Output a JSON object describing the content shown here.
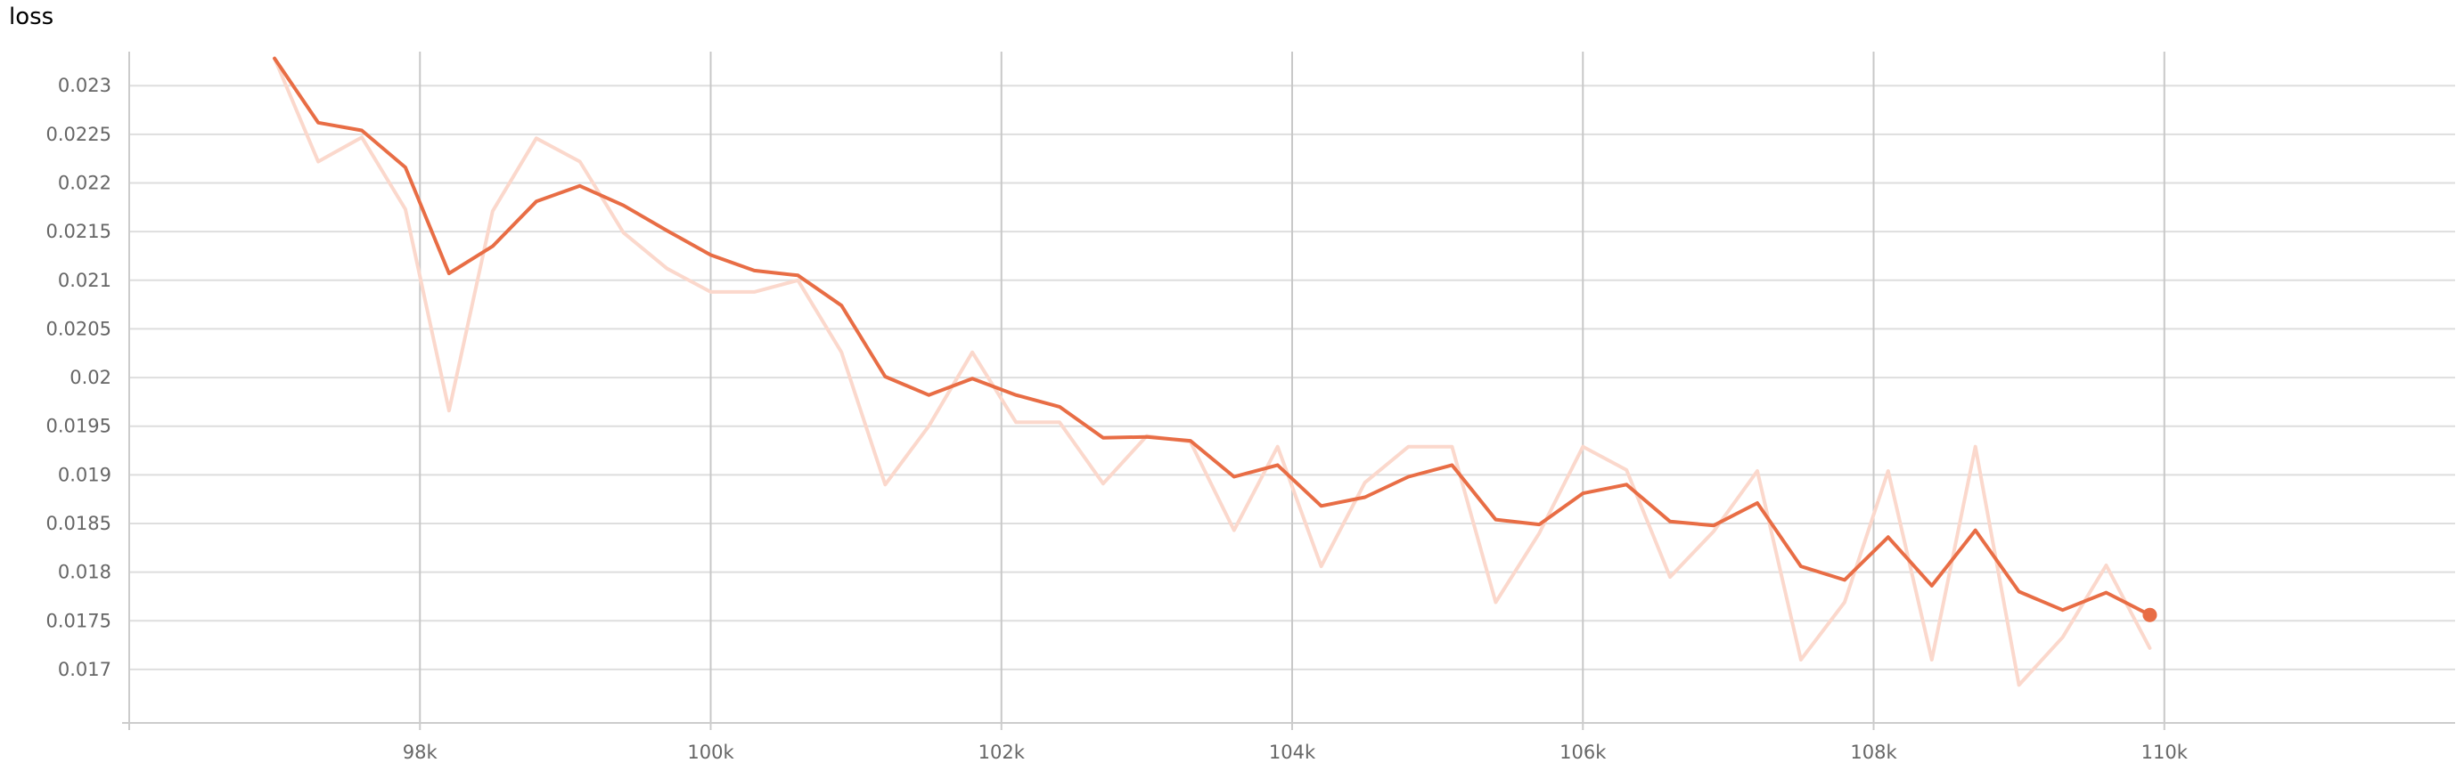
{
  "chart_data": {
    "type": "line",
    "title": "loss",
    "xlim": [
      96000,
      112000
    ],
    "ylim": [
      0.01645,
      0.02335
    ],
    "x_ticks": [
      {
        "value": 98000,
        "label": "98k"
      },
      {
        "value": 100000,
        "label": "100k"
      },
      {
        "value": 102000,
        "label": "102k"
      },
      {
        "value": 104000,
        "label": "104k"
      },
      {
        "value": 106000,
        "label": "106k"
      },
      {
        "value": 108000,
        "label": "108k"
      },
      {
        "value": 110000,
        "label": "110k"
      }
    ],
    "y_ticks": [
      {
        "value": 0.017,
        "label": "0.017"
      },
      {
        "value": 0.0175,
        "label": "0.0175"
      },
      {
        "value": 0.018,
        "label": "0.018"
      },
      {
        "value": 0.0185,
        "label": "0.0185"
      },
      {
        "value": 0.019,
        "label": "0.019"
      },
      {
        "value": 0.0195,
        "label": "0.0195"
      },
      {
        "value": 0.02,
        "label": "0.02"
      },
      {
        "value": 0.0205,
        "label": "0.0205"
      },
      {
        "value": 0.021,
        "label": "0.021"
      },
      {
        "value": 0.0215,
        "label": "0.0215"
      },
      {
        "value": 0.022,
        "label": "0.022"
      },
      {
        "value": 0.0225,
        "label": "0.0225"
      },
      {
        "value": 0.023,
        "label": "0.023"
      }
    ],
    "grid": true,
    "series": [
      {
        "colour": "#fbd8cc",
        "x": [
          97000,
          97300,
          97600,
          97900,
          98200,
          98500,
          98800,
          99100,
          99400,
          99700,
          100000,
          100300,
          100600,
          100900,
          101200,
          101500,
          101800,
          102100,
          102400,
          102700,
          103000,
          103300,
          103600,
          103900,
          104200,
          104500,
          104800,
          105100,
          105400,
          105700,
          106000,
          106300,
          106600,
          106900,
          107200,
          107500,
          107800,
          108100,
          108400,
          108700,
          109000,
          109300,
          109600,
          109900
        ],
        "y": [
          0.02328,
          0.02222,
          0.02247,
          0.02173,
          0.01966,
          0.02171,
          0.02246,
          0.02222,
          0.02149,
          0.02112,
          0.02088,
          0.02088,
          0.021,
          0.02026,
          0.0189,
          0.0195,
          0.02026,
          0.01954,
          0.01954,
          0.01891,
          0.0194,
          0.01934,
          0.01843,
          0.01929,
          0.01806,
          0.01892,
          0.01929,
          0.01929,
          0.01769,
          0.0184,
          0.01929,
          0.01905,
          0.01795,
          0.01842,
          0.01904,
          0.0171,
          0.01769,
          0.01904,
          0.0171,
          0.01929,
          0.01684,
          0.01733,
          0.01807,
          0.01722
        ]
      },
      {
        "colour": "#e86d45",
        "x": [
          97000,
          97300,
          97600,
          97900,
          98200,
          98500,
          98800,
          99100,
          99400,
          99700,
          100000,
          100300,
          100600,
          100900,
          101200,
          101500,
          101800,
          102100,
          102400,
          102700,
          103000,
          103300,
          103600,
          103900,
          104200,
          104500,
          104800,
          105100,
          105400,
          105700,
          106000,
          106300,
          106600,
          106900,
          107200,
          107500,
          107800,
          108100,
          108400,
          108700,
          109000,
          109300,
          109600,
          109900
        ],
        "y": [
          0.02328,
          0.02262,
          0.02254,
          0.02216,
          0.02107,
          0.02135,
          0.02181,
          0.02197,
          0.02177,
          0.02151,
          0.02126,
          0.0211,
          0.02105,
          0.02074,
          0.02001,
          0.01982,
          0.01999,
          0.01982,
          0.0197,
          0.01938,
          0.01939,
          0.01935,
          0.01898,
          0.0191,
          0.01868,
          0.01877,
          0.01898,
          0.0191,
          0.01854,
          0.01849,
          0.01881,
          0.0189,
          0.01852,
          0.01848,
          0.01871,
          0.01806,
          0.01792,
          0.01836,
          0.01786,
          0.01843,
          0.0178,
          0.01761,
          0.01779,
          0.01756
        ]
      }
    ]
  }
}
